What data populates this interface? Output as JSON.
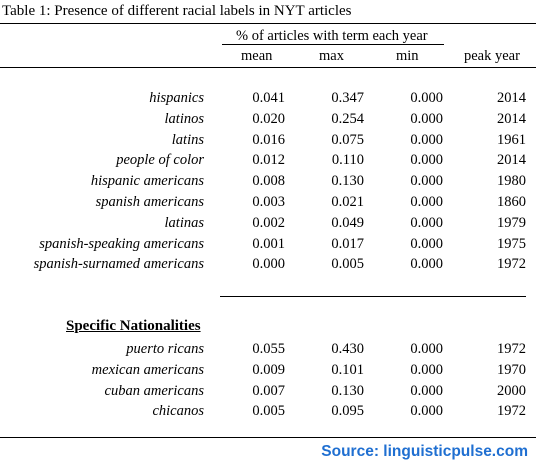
{
  "caption": "Table 1: Presence of different racial labels in NYT articles",
  "span_header": "% of articles with term each year",
  "columns": [
    "mean",
    "max",
    "min",
    "peak year"
  ],
  "rows": [
    {
      "label": "hispanics",
      "mean": "0.041",
      "max": "0.347",
      "min": "0.000",
      "peak": "2014"
    },
    {
      "label": "latinos",
      "mean": "0.020",
      "max": "0.254",
      "min": "0.000",
      "peak": "2014"
    },
    {
      "label": "latins",
      "mean": "0.016",
      "max": "0.075",
      "min": "0.000",
      "peak": "1961"
    },
    {
      "label": "people of color",
      "mean": "0.012",
      "max": "0.110",
      "min": "0.000",
      "peak": "2014"
    },
    {
      "label": "hispanic americans",
      "mean": "0.008",
      "max": "0.130",
      "min": "0.000",
      "peak": "1980"
    },
    {
      "label": "spanish americans",
      "mean": "0.003",
      "max": "0.021",
      "min": "0.000",
      "peak": "1860"
    },
    {
      "label": "latinas",
      "mean": "0.002",
      "max": "0.049",
      "min": "0.000",
      "peak": "1979"
    },
    {
      "label": "spanish-speaking americans",
      "mean": "0.001",
      "max": "0.017",
      "min": "0.000",
      "peak": "1975"
    },
    {
      "label": "spanish-surnamed americans",
      "mean": "0.000",
      "max": "0.005",
      "min": "0.000",
      "peak": "1972"
    }
  ],
  "section_title": "Specific Nationalities",
  "section_rows": [
    {
      "label": "puerto ricans",
      "mean": "0.055",
      "max": "0.430",
      "min": "0.000",
      "peak": "1972"
    },
    {
      "label": "mexican americans",
      "mean": "0.009",
      "max": "0.101",
      "min": "0.000",
      "peak": "1970"
    },
    {
      "label": "cuban americans",
      "mean": "0.007",
      "max": "0.130",
      "min": "0.000",
      "peak": "2000"
    },
    {
      "label": "chicanos",
      "mean": "0.005",
      "max": "0.095",
      "min": "0.000",
      "peak": "1972"
    }
  ],
  "source": "Source: linguisticpulse.com"
}
